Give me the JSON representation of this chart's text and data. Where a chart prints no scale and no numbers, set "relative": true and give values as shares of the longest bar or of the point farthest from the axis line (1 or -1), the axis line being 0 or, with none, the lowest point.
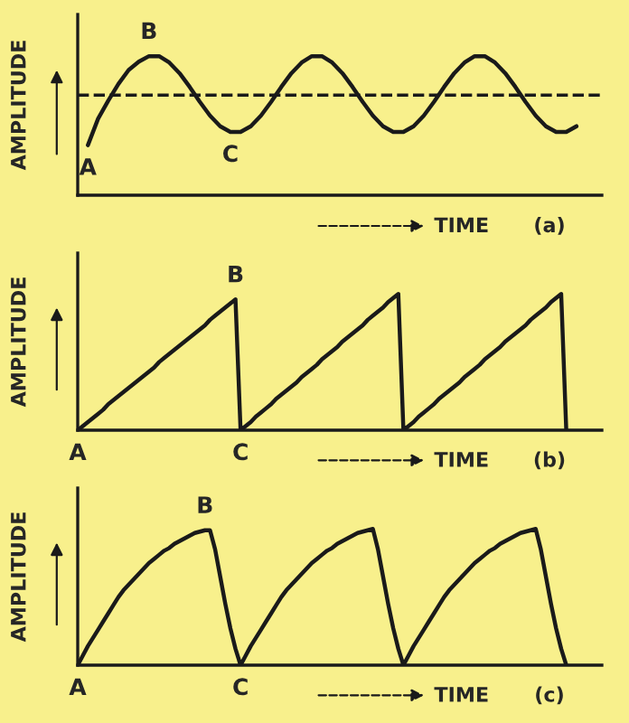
{
  "chart_data": [
    {
      "type": "line",
      "relative": true,
      "xlabel": "TIME",
      "ylabel": "AMPLITUDE",
      "line_style": "solid",
      "categories": [
        null,
        null,
        null,
        null,
        null,
        null,
        null,
        null,
        null,
        null,
        null,
        null,
        null,
        null,
        null,
        null,
        null,
        null,
        null,
        null,
        null,
        null,
        null,
        null,
        null,
        null,
        null,
        null,
        null,
        null,
        null,
        null,
        null,
        null,
        null,
        null,
        null,
        null,
        null,
        null,
        null,
        null,
        null,
        null,
        null,
        null,
        null,
        null,
        null,
        null,
        null
      ],
      "series": [
        {
          "color": "#1a1a1a",
          "values": [
            null,
            0.36,
            0.55,
            0.68,
            0.8,
            0.9,
            0.96,
            1.0,
            1.0,
            0.954,
            0.878,
            0.779,
            0.671,
            0.572,
            0.496,
            0.455,
            0.455,
            0.496,
            0.572,
            0.671,
            0.779,
            0.878,
            0.954,
            1.0,
            1.0,
            0.954,
            0.878,
            0.779,
            0.671,
            0.572,
            0.496,
            0.455,
            0.455,
            0.496,
            0.572,
            0.671,
            0.779,
            0.878,
            0.954,
            1.0,
            1.0,
            0.954,
            0.878,
            0.779,
            0.671,
            0.572,
            0.496,
            0.455,
            0.455,
            0.496,
            null
          ]
        }
      ],
      "ref_lines": [
        {
          "axis": "y",
          "value": 0.72,
          "color": "#1a1a1a",
          "line_style": "dashed"
        }
      ],
      "annotations": [
        {
          "text": "A",
          "y": 0.36
        },
        {
          "text": "B",
          "y": 1.0
        },
        {
          "text": "C",
          "y": 0.455
        },
        "(a)"
      ]
    },
    {
      "type": "line",
      "relative": true,
      "xlabel": "TIME",
      "ylabel": "AMPLITUDE",
      "line_style": "solid",
      "categories": [
        null,
        null,
        null,
        null,
        null,
        null,
        null,
        null,
        null,
        null,
        null,
        null,
        null,
        null,
        null,
        null,
        null,
        null,
        null,
        null,
        null,
        null,
        null,
        null,
        null,
        null,
        null,
        null,
        null,
        null,
        null,
        null,
        null,
        null,
        null,
        null,
        null,
        null,
        null,
        null,
        null,
        null,
        null,
        null,
        null,
        null,
        null,
        null,
        null,
        null,
        null,
        null,
        null,
        null,
        null,
        null,
        null,
        null,
        null,
        null,
        null,
        null,
        null,
        null,
        null,
        null,
        null,
        null,
        null,
        null,
        null,
        null,
        null,
        null,
        null,
        null,
        null,
        null,
        null,
        null,
        null,
        null,
        null,
        null,
        null,
        null,
        null,
        null,
        null,
        null,
        null,
        null,
        null,
        null,
        null,
        null,
        null,
        null,
        null,
        null,
        null
      ],
      "series": [
        {
          "color": "#1a1a1a",
          "values": [
            0,
            0.03,
            0.06,
            0.09,
            0.12,
            0.15,
            0.19,
            0.22,
            0.25,
            0.28,
            0.31,
            0.34,
            0.37,
            0.4,
            0.43,
            0.46,
            0.5,
            0.53,
            0.56,
            0.59,
            0.62,
            0.65,
            0.68,
            0.71,
            0.74,
            0.77,
            0.81,
            0.84,
            0.87,
            0.9,
            0.93,
            0.96,
            0,
            0.03,
            0.06,
            0.1,
            0.13,
            0.16,
            0.19,
            0.23,
            0.26,
            0.29,
            0.32,
            0.35,
            0.39,
            0.42,
            0.45,
            0.48,
            0.52,
            0.55,
            0.58,
            0.61,
            0.65,
            0.68,
            0.71,
            0.74,
            0.77,
            0.81,
            0.84,
            0.87,
            0.9,
            0.94,
            0.97,
            1.0,
            0,
            0.03,
            0.06,
            0.1,
            0.13,
            0.16,
            0.19,
            0.23,
            0.26,
            0.29,
            0.32,
            0.35,
            0.39,
            0.42,
            0.45,
            0.48,
            0.52,
            0.55,
            0.58,
            0.61,
            0.65,
            0.68,
            0.71,
            0.74,
            0.77,
            0.81,
            0.84,
            0.87,
            0.9,
            0.94,
            0.97,
            1.0,
            0,
            null,
            null,
            null,
            null
          ]
        }
      ],
      "annotations": [
        {
          "text": "A",
          "y": 0
        },
        {
          "text": "B",
          "y": 0.96
        },
        {
          "text": "C",
          "y": 0
        },
        "(b)"
      ]
    },
    {
      "type": "line",
      "relative": true,
      "xlabel": "TIME",
      "ylabel": "AMPLITUDE",
      "line_style": "solid",
      "categories": [
        null,
        null,
        null,
        null,
        null,
        null,
        null,
        null,
        null,
        null,
        null,
        null,
        null,
        null,
        null,
        null,
        null,
        null,
        null,
        null,
        null,
        null,
        null,
        null,
        null,
        null,
        null,
        null,
        null,
        null,
        null,
        null,
        null,
        null,
        null,
        null,
        null,
        null,
        null,
        null,
        null,
        null,
        null,
        null,
        null,
        null,
        null,
        null,
        null,
        null,
        null,
        null,
        null,
        null,
        null,
        null,
        null,
        null,
        null,
        null,
        null,
        null,
        null,
        null,
        null,
        null,
        null,
        null,
        null,
        null,
        null,
        null,
        null,
        null,
        null,
        null,
        null,
        null,
        null,
        null,
        null,
        null,
        null,
        null,
        null,
        null,
        null,
        null,
        null,
        null,
        null,
        null,
        null,
        null,
        null,
        null,
        null,
        null,
        null,
        null,
        null
      ],
      "series": [
        {
          "color": "#1a1a1a",
          "values": [
            0,
            0.07,
            0.14,
            0.2,
            0.26,
            0.32,
            0.38,
            0.44,
            0.5,
            0.55,
            0.59,
            0.63,
            0.67,
            0.71,
            0.75,
            0.78,
            0.81,
            0.84,
            0.86,
            0.89,
            0.91,
            0.93,
            0.95,
            0.97,
            0.98,
            0.99,
            0.99,
            0.85,
            0.65,
            0.45,
            0.27,
            0.12,
            0,
            0.07,
            0.14,
            0.2,
            0.26,
            0.32,
            0.38,
            0.44,
            0.5,
            0.55,
            0.59,
            0.63,
            0.67,
            0.71,
            0.75,
            0.78,
            0.81,
            0.84,
            0.86,
            0.89,
            0.91,
            0.93,
            0.95,
            0.97,
            0.98,
            0.99,
            1.0,
            0.85,
            0.65,
            0.45,
            0.27,
            0.12,
            0,
            0.07,
            0.14,
            0.2,
            0.26,
            0.32,
            0.38,
            0.44,
            0.5,
            0.55,
            0.59,
            0.63,
            0.67,
            0.71,
            0.75,
            0.78,
            0.81,
            0.84,
            0.86,
            0.89,
            0.91,
            0.93,
            0.95,
            0.97,
            0.98,
            0.99,
            1.0,
            0.85,
            0.65,
            0.45,
            0.27,
            0.12,
            0,
            null,
            null,
            null,
            null
          ]
        }
      ],
      "annotations": [
        {
          "text": "A",
          "y": 0
        },
        {
          "text": "B",
          "y": 0.99
        },
        {
          "text": "C",
          "y": 0
        },
        "(c)"
      ]
    }
  ]
}
